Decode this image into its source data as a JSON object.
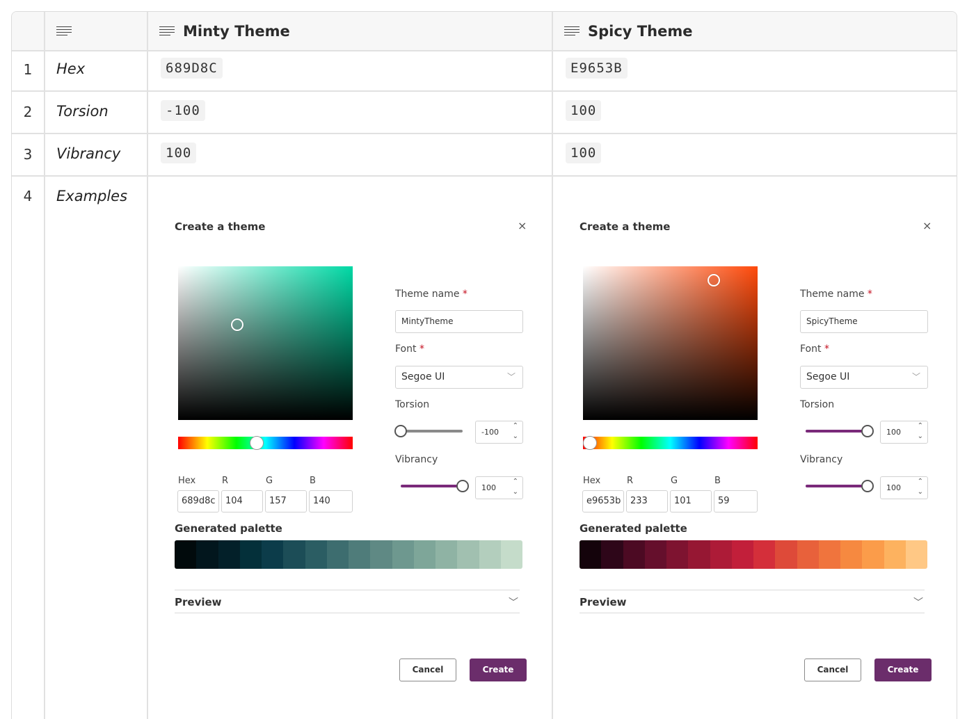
{
  "header": {
    "col1_icon": "lines-icon",
    "col2_title": "Minty Theme",
    "col3_title": "Spicy Theme"
  },
  "rows": [
    {
      "num": "1",
      "label": "Hex",
      "minty": "689D8C",
      "spicy": "E9653B"
    },
    {
      "num": "2",
      "label": "Torsion",
      "minty": "-100",
      "spicy": "100"
    },
    {
      "num": "3",
      "label": "Vibrancy",
      "minty": "100",
      "spicy": "100"
    },
    {
      "num": "4",
      "label": "Examples"
    }
  ],
  "dialogs": {
    "minty": {
      "title": "Create a theme",
      "close": "×",
      "base_color": "#00d9a5",
      "thumb_sv": [
        0.34,
        0.38
      ],
      "hue_fraction": 0.45,
      "hex_label": "Hex",
      "r_label": "R",
      "g_label": "G",
      "b_label": "B",
      "hex": "689d8c",
      "r": "104",
      "g": "157",
      "b": "140",
      "theme_name_label": "Theme name",
      "required": "*",
      "theme_name": "MintyTheme",
      "font_label": "Font",
      "font": "Segoe UI",
      "torsion_label": "Torsion",
      "torsion": "-100",
      "torsion_fraction": 0.0,
      "vibrancy_label": "Vibrancy",
      "vibrancy": "100",
      "vibrancy_fraction": 1.0,
      "palette_title": "Generated palette",
      "palette": [
        "#010a0c",
        "#02161d",
        "#032029",
        "#04303a",
        "#0c3c4a",
        "#1c4d57",
        "#2b5d63",
        "#3d6d6f",
        "#4f7c7a",
        "#5f8984",
        "#6e988f",
        "#7ea699",
        "#8fb3a4",
        "#a1c0b0",
        "#b3cebd",
        "#c5dcca"
      ],
      "preview_label": "Preview",
      "cancel": "Cancel",
      "create": "Create"
    },
    "spicy": {
      "title": "Create a theme",
      "close": "×",
      "base_color": "#ff4a0b",
      "thumb_sv": [
        0.75,
        0.09
      ],
      "hue_fraction": 0.04,
      "hex_label": "Hex",
      "r_label": "R",
      "g_label": "G",
      "b_label": "B",
      "hex": "e9653b",
      "r": "233",
      "g": "101",
      "b": "59",
      "theme_name_label": "Theme name",
      "required": "*",
      "theme_name": "SpicyTheme",
      "font_label": "Font",
      "font": "Segoe UI",
      "torsion_label": "Torsion",
      "torsion": "100",
      "torsion_fraction": 1.0,
      "vibrancy_label": "Vibrancy",
      "vibrancy": "100",
      "vibrancy_fraction": 1.0,
      "palette_title": "Generated palette",
      "palette": [
        "#14030b",
        "#2e0619",
        "#4c0a23",
        "#650f2c",
        "#7e1330",
        "#961733",
        "#ad1b37",
        "#c21f3a",
        "#d42f3a",
        "#de4a39",
        "#e8613b",
        "#f0743d",
        "#f68940",
        "#fb9c4a",
        "#fdb25f",
        "#ffc885"
      ],
      "preview_label": "Preview",
      "cancel": "Cancel",
      "create": "Create"
    }
  }
}
